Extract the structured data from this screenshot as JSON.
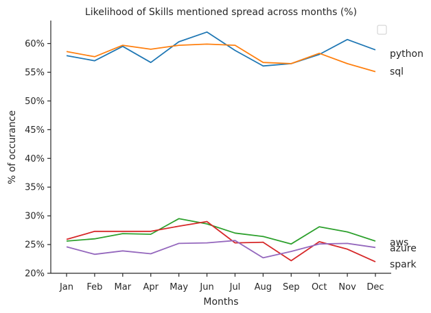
{
  "chart_data": {
    "type": "line",
    "title": "Likelihood of Skills mentioned spread across months (%)",
    "xlabel": "Months",
    "ylabel": "% of occurance",
    "categories": [
      "Jan",
      "Feb",
      "Mar",
      "Apr",
      "May",
      "Jun",
      "Jul",
      "Aug",
      "Sep",
      "Oct",
      "Nov",
      "Dec"
    ],
    "ylim": [
      20,
      64
    ],
    "yticks": [
      20,
      25,
      30,
      35,
      40,
      45,
      50,
      55,
      60
    ],
    "ytick_labels": [
      "20%",
      "25%",
      "30%",
      "35%",
      "40%",
      "45%",
      "50%",
      "55%",
      "60%"
    ],
    "grid": false,
    "legend": "top-right",
    "series": [
      {
        "name": "python",
        "color": "#1f77b4",
        "values": [
          57.9,
          57.0,
          59.5,
          56.7,
          60.3,
          62.0,
          58.8,
          56.1,
          56.5,
          58.1,
          60.7,
          58.9
        ]
      },
      {
        "name": "sql",
        "color": "#ff7f0e",
        "values": [
          58.6,
          57.7,
          59.7,
          59.0,
          59.7,
          59.9,
          59.7,
          56.7,
          56.5,
          58.3,
          56.5,
          55.1
        ]
      },
      {
        "name": "aws",
        "color": "#2ca02c",
        "values": [
          25.6,
          26.0,
          26.9,
          26.8,
          29.5,
          28.6,
          27.0,
          26.4,
          25.1,
          28.1,
          27.2,
          25.6
        ]
      },
      {
        "name": "azure",
        "color": "#d62728",
        "values": [
          25.9,
          27.3,
          27.3,
          27.3,
          28.2,
          29.0,
          25.3,
          25.4,
          22.2,
          25.5,
          24.2,
          22.0
        ]
      },
      {
        "name": "spark",
        "color": "#9467bd",
        "values": [
          24.6,
          23.3,
          23.9,
          23.4,
          25.2,
          25.3,
          25.7,
          22.7,
          23.8,
          25.1,
          25.2,
          24.5
        ]
      }
    ],
    "end_labels": [
      {
        "text": "python",
        "value": 58.3
      },
      {
        "text": "sql",
        "value": 55.2
      },
      {
        "text": "aws",
        "value": 25.4
      },
      {
        "text": "azure",
        "value": 24.4
      },
      {
        "text": "spark",
        "value": 21.6
      }
    ]
  }
}
